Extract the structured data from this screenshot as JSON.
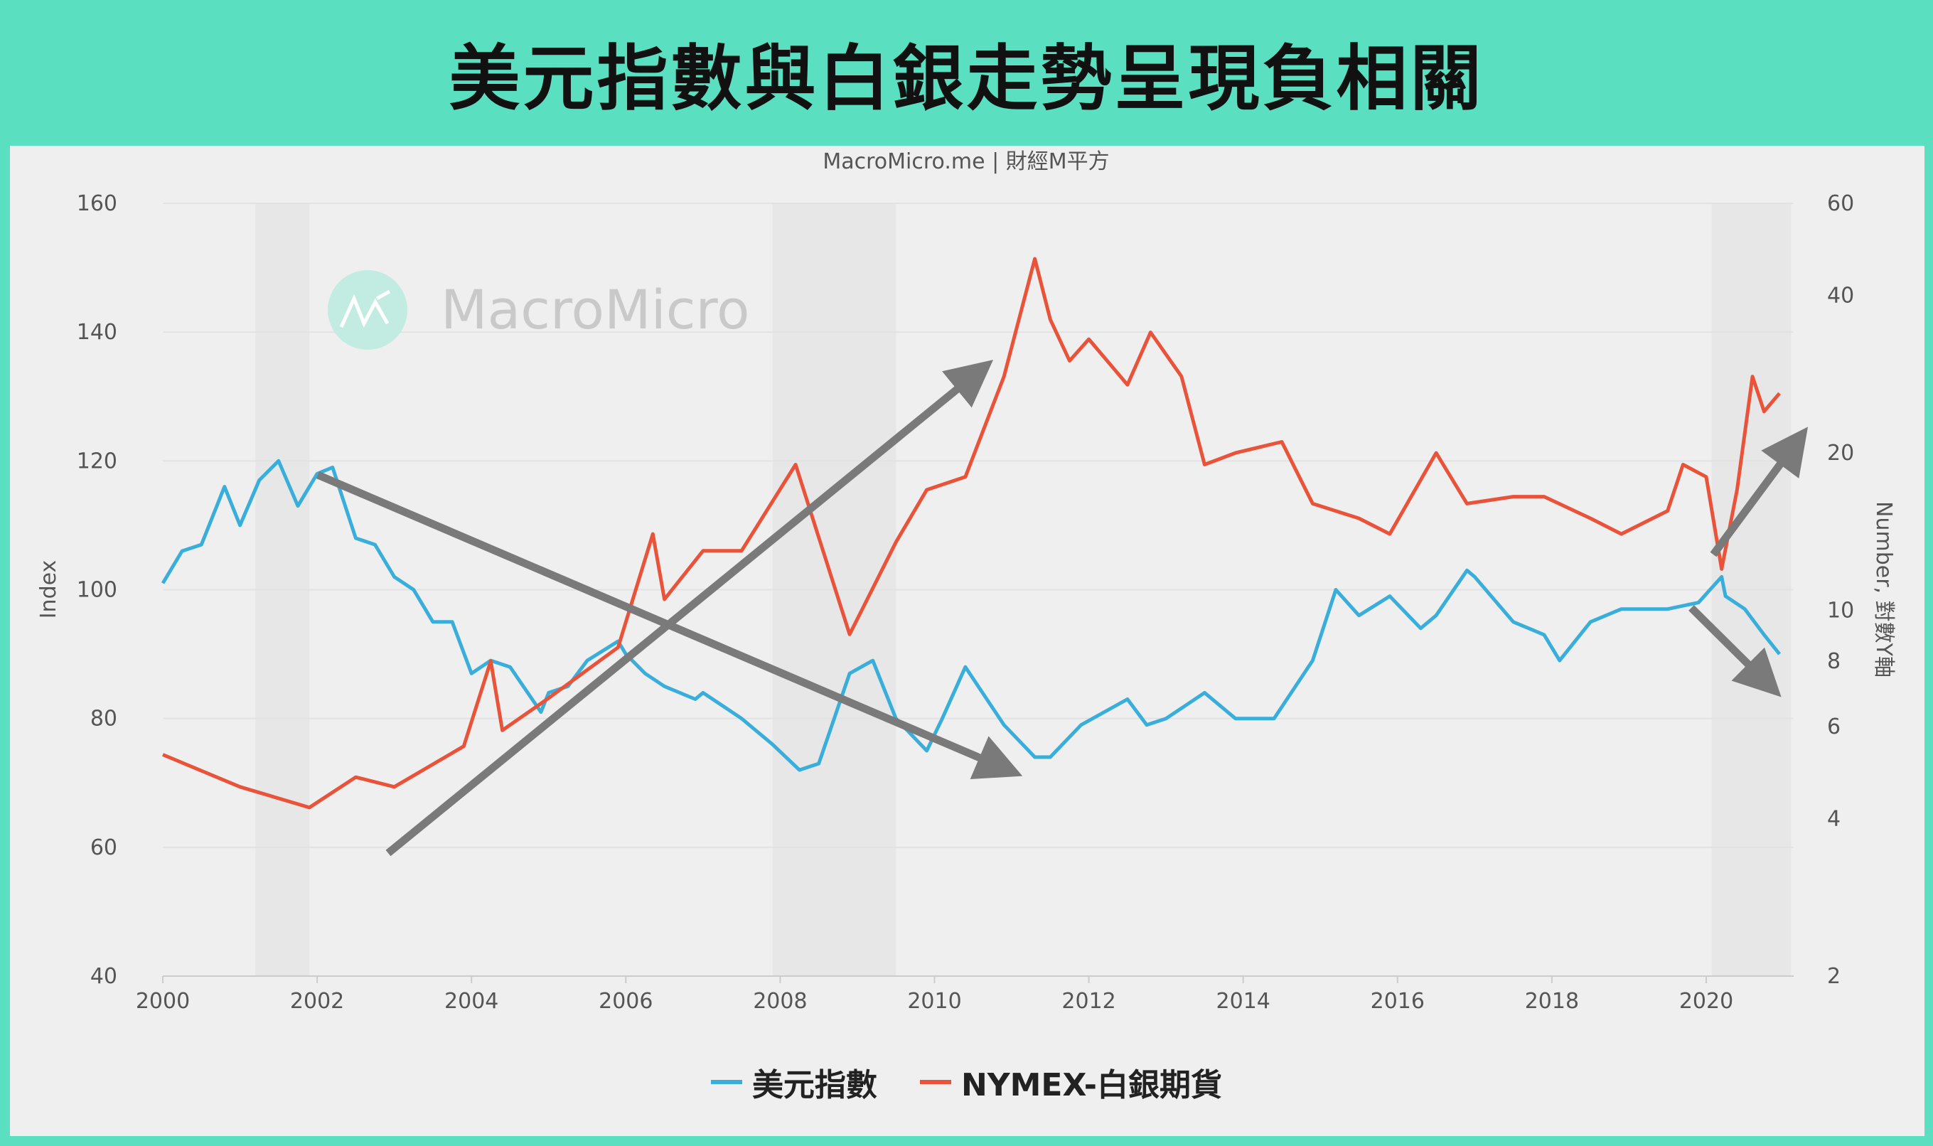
{
  "title": "美元指數與白銀走勢呈現負相關",
  "source": "MacroMicro.me | 財經M平方",
  "watermark": "MacroMicro",
  "colors": {
    "background": "#5ADFC0",
    "plot": "#efefef",
    "dxy": "#3AAEDB",
    "silver": "#E8533A",
    "arrow": "#7a7a7a",
    "recession": "#e7e7e7"
  },
  "chart_data": {
    "type": "line",
    "xlabel": "",
    "ylabel_left": "Index",
    "ylabel_right": "Number, 對數Y軸",
    "xlim": [
      2000,
      2021.1
    ],
    "ylim_left": [
      40,
      160
    ],
    "ylim_right": [
      2,
      60
    ],
    "right_scale": "log",
    "x_ticks": [
      "2000",
      "2002",
      "2004",
      "2006",
      "2008",
      "2010",
      "2012",
      "2014",
      "2016",
      "2018",
      "2020"
    ],
    "y_ticks_left": [
      "40",
      "60",
      "80",
      "100",
      "120",
      "140",
      "160"
    ],
    "y_ticks_right": [
      "2",
      "4",
      "6",
      "8",
      "10",
      "20",
      "40",
      "60"
    ],
    "grid": true,
    "legend_position": "bottom",
    "shaded_periods": [
      [
        2001.2,
        2001.9
      ],
      [
        2007.9,
        2009.5
      ],
      [
        2020.07,
        2021.1
      ]
    ],
    "series": [
      {
        "name": "美元指數",
        "axis": "left",
        "x": [
          2000.0,
          2000.25,
          2000.5,
          2000.8,
          2001.0,
          2001.25,
          2001.5,
          2001.75,
          2002.0,
          2002.2,
          2002.5,
          2002.75,
          2003.0,
          2003.25,
          2003.5,
          2003.75,
          2004.0,
          2004.25,
          2004.5,
          2004.9,
          2005.0,
          2005.25,
          2005.5,
          2005.9,
          2006.0,
          2006.25,
          2006.5,
          2006.9,
          2007.0,
          2007.25,
          2007.5,
          2007.9,
          2008.25,
          2008.5,
          2008.9,
          2009.2,
          2009.5,
          2009.9,
          2010.1,
          2010.4,
          2010.9,
          2011.3,
          2011.5,
          2011.9,
          2012.5,
          2012.75,
          2013.0,
          2013.5,
          2013.9,
          2014.4,
          2014.9,
          2015.2,
          2015.5,
          2015.9,
          2016.3,
          2016.5,
          2016.9,
          2017.0,
          2017.5,
          2017.9,
          2018.1,
          2018.5,
          2018.9,
          2019.5,
          2019.9,
          2020.2,
          2020.25,
          2020.5,
          2020.75,
          2020.95
        ],
        "values": [
          101,
          106,
          107,
          116,
          110,
          117,
          120,
          113,
          118,
          119,
          108,
          107,
          102,
          100,
          95,
          95,
          87,
          89,
          88,
          81,
          84,
          85,
          89,
          92,
          90,
          87,
          85,
          83,
          84,
          82,
          80,
          76,
          72,
          73,
          87,
          89,
          80,
          75,
          80,
          88,
          79,
          74,
          74,
          79,
          83,
          79,
          80,
          84,
          80,
          80,
          89,
          100,
          96,
          99,
          94,
          96,
          103,
          102,
          95,
          93,
          89,
          95,
          97,
          97,
          98,
          102,
          99,
          97,
          93,
          90
        ]
      },
      {
        "name": "NYMEX-白銀期貨",
        "axis": "right",
        "x": [
          2000.0,
          2001.0,
          2001.9,
          2002.5,
          2003.0,
          2003.9,
          2004.25,
          2004.4,
          2005.0,
          2005.9,
          2006.35,
          2006.5,
          2007.0,
          2007.5,
          2008.2,
          2008.9,
          2009.5,
          2009.9,
          2010.4,
          2010.9,
          2011.3,
          2011.5,
          2011.75,
          2012.0,
          2012.5,
          2012.8,
          2013.2,
          2013.5,
          2013.9,
          2014.5,
          2014.9,
          2015.5,
          2015.9,
          2016.5,
          2016.9,
          2017.5,
          2017.9,
          2018.5,
          2018.9,
          2019.5,
          2019.7,
          2020.0,
          2020.2,
          2020.4,
          2020.6,
          2020.75,
          2020.95
        ],
        "values": [
          5.3,
          4.6,
          4.2,
          4.8,
          4.6,
          5.5,
          8.0,
          5.9,
          6.8,
          8.5,
          14,
          10.5,
          13,
          13,
          19,
          9,
          13.5,
          17,
          18,
          28,
          47,
          36,
          30,
          33,
          27,
          34,
          28,
          19,
          20,
          21,
          16,
          15,
          14,
          20,
          16,
          16.5,
          16.5,
          15,
          14,
          15.5,
          19,
          18,
          12,
          17,
          28,
          24,
          26
        ]
      }
    ]
  }
}
